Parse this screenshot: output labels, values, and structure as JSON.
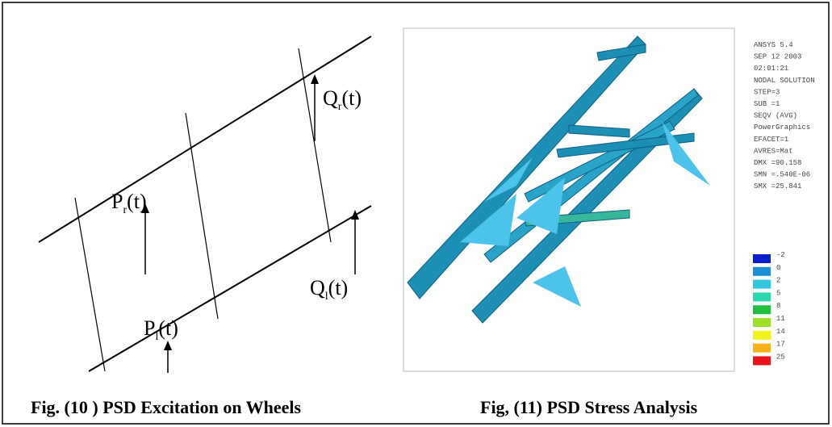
{
  "left_figure": {
    "labels": [
      {
        "main": "P",
        "sub": "r",
        "tail": "(t)"
      },
      {
        "main": "Q",
        "sub": "r",
        "tail": "(t)"
      },
      {
        "main": "Q",
        "sub": "l",
        "tail": "(t)"
      },
      {
        "main": "P",
        "sub": "l",
        "tail": "(t)"
      }
    ]
  },
  "right_figure": {
    "info": [
      "ANSYS 5.4",
      "SEP 12 2003",
      "02:01:21",
      "NODAL SOLUTION",
      "STEP=3",
      "SUB =1",
      "SEQV      (AVG)",
      "PowerGraphics",
      "EFACET=1",
      "AVRES=Mat",
      "DMX =90.158",
      "SMN =.540E-06",
      "SMX =25.841"
    ],
    "legend": [
      {
        "label": "-2",
        "color": "#0a1fc8"
      },
      {
        "label": "0",
        "color": "#1e8fd6"
      },
      {
        "label": "2",
        "color": "#34c6e0"
      },
      {
        "label": "5",
        "color": "#2fd7b0"
      },
      {
        "label": "8",
        "color": "#22c040"
      },
      {
        "label": "11",
        "color": "#9ee02a"
      },
      {
        "label": "14",
        "color": "#f2f21c"
      },
      {
        "label": "17",
        "color": "#f5b21a"
      },
      {
        "label": "25",
        "color": "#e8141a"
      }
    ]
  },
  "captions": [
    "Fig. (10 ) PSD Excitation on Wheels",
    "Fig, (11) PSD Stress Analysis"
  ]
}
